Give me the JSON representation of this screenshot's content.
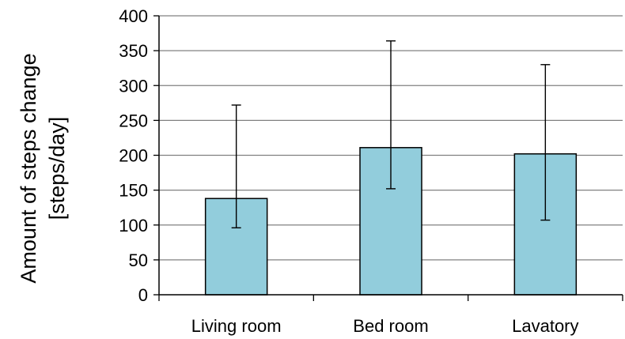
{
  "chart_data": {
    "type": "bar",
    "title": "",
    "xlabel": "",
    "ylabel_lines": [
      "Amount of steps change",
      "[steps/day]"
    ],
    "categories": [
      "Living room",
      "Bed room",
      "Lavatory"
    ],
    "values": [
      138,
      211,
      202
    ],
    "error_low": [
      96,
      152,
      107
    ],
    "error_high": [
      272,
      364,
      330
    ],
    "ylim": [
      0,
      400
    ],
    "yticks": [
      0,
      50,
      100,
      150,
      200,
      250,
      300,
      350,
      400
    ],
    "grid": true,
    "legend": "none",
    "colors": {
      "bar_fill": "#92CDDC",
      "bar_stroke": "#000000",
      "grid": "#808080",
      "axis": "#000000"
    }
  }
}
